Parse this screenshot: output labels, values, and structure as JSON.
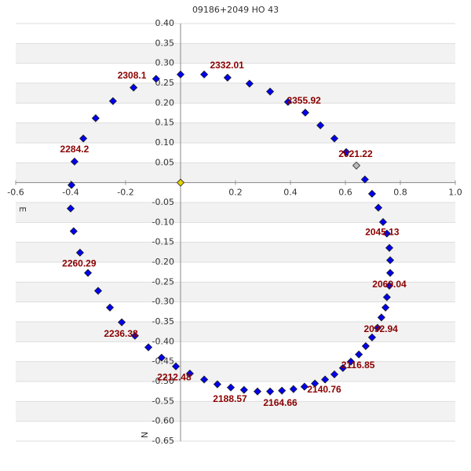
{
  "chart_data": {
    "type": "scatter",
    "title": "09186+2049 HO   43",
    "x_label": "E",
    "y_label": "N",
    "xlim": [
      -0.6,
      1.0
    ],
    "ylim": [
      -0.65,
      0.4
    ],
    "xticks": [
      -0.6,
      -0.4,
      -0.2,
      0.2,
      0.4,
      0.6,
      0.8,
      {
        "value": 1.0,
        "label": "1.0"
      }
    ],
    "yticks": [
      {
        "value": 0.4,
        "label": "0.40"
      },
      0.35,
      {
        "value": 0.3,
        "label": "0.30"
      },
      0.25,
      {
        "value": 0.2,
        "label": "0.20"
      },
      0.15,
      {
        "value": 0.1,
        "label": "0.10"
      },
      0.05,
      -0.05,
      {
        "value": -0.1,
        "label": "-0.10"
      },
      -0.15,
      {
        "value": -0.2,
        "label": "-0.20"
      },
      -0.25,
      {
        "value": -0.3,
        "label": "-0.30"
      },
      -0.35,
      {
        "value": -0.4,
        "label": "-0.40"
      },
      -0.45,
      {
        "value": -0.5,
        "label": "-0.50"
      },
      -0.55,
      {
        "value": -0.6,
        "label": "-0.60"
      },
      -0.65
    ],
    "grid": true,
    "color": "#0000ee",
    "x": [
      0.0,
      0.086,
      0.171,
      0.251,
      0.326,
      0.391,
      0.454,
      0.509,
      0.56,
      0.603,
      0.671,
      0.697,
      0.72,
      0.737,
      0.751,
      0.76,
      0.763,
      0.763,
      0.76,
      0.751,
      0.746,
      0.731,
      0.717,
      0.697,
      0.674,
      0.649,
      0.62,
      0.591,
      0.56,
      0.526,
      0.489,
      0.451,
      0.411,
      0.369,
      0.326,
      0.28,
      0.231,
      0.183,
      0.134,
      0.086,
      0.034,
      -0.017,
      -0.069,
      -0.117,
      -0.166,
      -0.214,
      -0.257,
      -0.3,
      -0.337,
      -0.366,
      -0.389,
      -0.4,
      -0.397,
      -0.386,
      -0.354,
      -0.309,
      -0.246,
      -0.171,
      -0.089
    ],
    "y": [
      0.272,
      0.272,
      0.264,
      0.249,
      0.229,
      0.203,
      0.176,
      0.144,
      0.111,
      0.077,
      0.008,
      -0.028,
      -0.063,
      -0.099,
      -0.128,
      -0.164,
      -0.195,
      -0.227,
      -0.259,
      -0.288,
      -0.314,
      -0.339,
      -0.365,
      -0.389,
      -0.411,
      -0.432,
      -0.45,
      -0.466,
      -0.482,
      -0.495,
      -0.505,
      -0.513,
      -0.519,
      -0.523,
      -0.525,
      -0.525,
      -0.521,
      -0.515,
      -0.507,
      -0.495,
      -0.48,
      -0.462,
      -0.44,
      -0.414,
      -0.385,
      -0.351,
      -0.314,
      -0.272,
      -0.227,
      -0.176,
      -0.122,
      -0.065,
      -0.006,
      0.053,
      0.111,
      0.162,
      0.205,
      0.239,
      0.261
    ],
    "highlight": {
      "x": 0.64,
      "y": 0.043,
      "color": "#bbbbbb"
    },
    "primary": {
      "x": 0,
      "y": 0,
      "color": "#e6d200"
    },
    "annotation_color": "#8b0000",
    "annotations": [
      {
        "text": "2332.01",
        "x": 0.169,
        "y": 0.294
      },
      {
        "text": "2308.1",
        "x": -0.177,
        "y": 0.268
      },
      {
        "text": "2355.92",
        "x": 0.449,
        "y": 0.205
      },
      {
        "text": "2284.2",
        "x": -0.386,
        "y": 0.083
      },
      {
        "text": "2021.22",
        "x": 0.637,
        "y": 0.071
      },
      {
        "text": "2045.13",
        "x": 0.734,
        "y": -0.126
      },
      {
        "text": "2069.04",
        "x": 0.76,
        "y": -0.257
      },
      {
        "text": "2092.94",
        "x": 0.729,
        "y": -0.369
      },
      {
        "text": "2116.85",
        "x": 0.646,
        "y": -0.46
      },
      {
        "text": "2140.76",
        "x": 0.523,
        "y": -0.521
      },
      {
        "text": "2164.66",
        "x": 0.363,
        "y": -0.555
      },
      {
        "text": "2188.57",
        "x": 0.18,
        "y": -0.545
      },
      {
        "text": "2212.48",
        "x": -0.023,
        "y": -0.491
      },
      {
        "text": "2236.38",
        "x": -0.217,
        "y": -0.381
      },
      {
        "text": "2260.29",
        "x": -0.369,
        "y": -0.205
      }
    ]
  }
}
